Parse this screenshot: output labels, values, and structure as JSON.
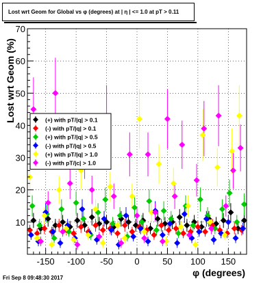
{
  "title": "Lost wrt Geom for Global vs φ (degrees) at | η | <= 1.0 at pT > 0.11",
  "footer": "Fri Sep  8 09:48:30 2017",
  "chart_data": {
    "type": "scatter",
    "xlabel": "φ (degrees)",
    "ylabel": "Lost wrt Geom (%)",
    "xlim": [
      -180,
      180
    ],
    "ylim": [
      0,
      70
    ],
    "xticks": [
      -150,
      -100,
      -50,
      0,
      50,
      100,
      150
    ],
    "yticks": [
      10,
      20,
      30,
      40,
      50,
      60,
      70
    ],
    "grid": true,
    "legend_position": "left-center",
    "series": [
      {
        "name": "(+) with pT/|q| > 0.1",
        "color": "#000000",
        "marker": "diamond",
        "points": [
          [
            -170,
            10.5
          ],
          [
            -158,
            8.0
          ],
          [
            -146,
            11.0
          ],
          [
            -134,
            9.0
          ],
          [
            -122,
            10.0
          ],
          [
            -110,
            8.5
          ],
          [
            -98,
            10.5
          ],
          [
            -86,
            9.0
          ],
          [
            -74,
            11.5
          ],
          [
            -62,
            9.5
          ],
          [
            -50,
            10.0
          ],
          [
            -38,
            8.5
          ],
          [
            -26,
            11.0
          ],
          [
            -14,
            10.0
          ],
          [
            -2,
            9.0
          ],
          [
            10,
            10.5
          ],
          [
            22,
            8.0
          ],
          [
            34,
            11.0
          ],
          [
            46,
            9.5
          ],
          [
            58,
            10.0
          ],
          [
            70,
            11.5
          ],
          [
            82,
            9.0
          ],
          [
            94,
            10.0
          ],
          [
            106,
            8.5
          ],
          [
            118,
            11.0
          ],
          [
            130,
            9.5
          ],
          [
            142,
            10.5
          ],
          [
            154,
            13.0
          ],
          [
            166,
            8.0
          ],
          [
            176,
            10.5
          ]
        ]
      },
      {
        "name": "(-) with pT/|q| > 0.1",
        "color": "#ff0000",
        "marker": "diamond",
        "points": [
          [
            -176,
            7.5
          ],
          [
            -164,
            6.5
          ],
          [
            -152,
            8.0
          ],
          [
            -140,
            7.0
          ],
          [
            -128,
            9.0
          ],
          [
            -116,
            7.5
          ],
          [
            -104,
            6.5
          ],
          [
            -92,
            8.5
          ],
          [
            -80,
            7.0
          ],
          [
            -68,
            9.0
          ],
          [
            -56,
            7.5
          ],
          [
            -44,
            8.0
          ],
          [
            -32,
            6.5
          ],
          [
            -20,
            9.0
          ],
          [
            -8,
            7.0
          ],
          [
            4,
            8.5
          ],
          [
            16,
            7.5
          ],
          [
            28,
            6.0
          ],
          [
            40,
            9.0
          ],
          [
            52,
            7.5
          ],
          [
            64,
            8.0
          ],
          [
            76,
            6.5
          ],
          [
            88,
            7.0
          ],
          [
            100,
            8.5
          ],
          [
            112,
            7.0
          ],
          [
            124,
            9.0
          ],
          [
            136,
            7.5
          ],
          [
            148,
            6.5
          ],
          [
            160,
            8.0
          ],
          [
            172,
            7.5
          ]
        ]
      },
      {
        "name": "(+) with pT/|q| > 0.5",
        "color": "#00cc00",
        "marker": "diamond",
        "points": [
          [
            -172,
            15.0
          ],
          [
            -160,
            9.0
          ],
          [
            -148,
            12.5
          ],
          [
            -136,
            5.0
          ],
          [
            -124,
            14.0
          ],
          [
            -112,
            7.0
          ],
          [
            -100,
            16.0
          ],
          [
            -88,
            11.0
          ],
          [
            -76,
            6.0
          ],
          [
            -64,
            13.0
          ],
          [
            -52,
            17.0
          ],
          [
            -40,
            9.5
          ],
          [
            -28,
            12.0
          ],
          [
            -16,
            5.5
          ],
          [
            -4,
            14.5
          ],
          [
            8,
            10.0
          ],
          [
            20,
            16.5
          ],
          [
            32,
            7.5
          ],
          [
            44,
            13.5
          ],
          [
            56,
            11.0
          ],
          [
            68,
            6.5
          ],
          [
            80,
            15.0
          ],
          [
            92,
            9.0
          ],
          [
            104,
            17.0
          ],
          [
            116,
            12.0
          ],
          [
            128,
            8.0
          ],
          [
            140,
            14.0
          ],
          [
            152,
            19.0
          ],
          [
            164,
            10.0
          ],
          [
            176,
            15.5
          ]
        ]
      },
      {
        "name": "(-) with pT/|q| > 0.5",
        "color": "#0000ff",
        "marker": "diamond",
        "points": [
          [
            -174,
            6.0
          ],
          [
            -162,
            4.0
          ],
          [
            -150,
            13.0
          ],
          [
            -138,
            7.0
          ],
          [
            -126,
            3.5
          ],
          [
            -114,
            9.0
          ],
          [
            -102,
            5.0
          ],
          [
            -90,
            14.0
          ],
          [
            -78,
            6.5
          ],
          [
            -66,
            4.5
          ],
          [
            -54,
            11.0
          ],
          [
            -42,
            7.5
          ],
          [
            -30,
            3.0
          ],
          [
            -18,
            12.0
          ],
          [
            -6,
            5.5
          ],
          [
            6,
            8.0
          ],
          [
            18,
            4.0
          ],
          [
            30,
            13.5
          ],
          [
            42,
            6.0
          ],
          [
            54,
            9.5
          ],
          [
            66,
            3.5
          ],
          [
            78,
            12.5
          ],
          [
            90,
            5.0
          ],
          [
            102,
            7.0
          ],
          [
            114,
            11.0
          ],
          [
            126,
            4.5
          ],
          [
            138,
            6.5
          ],
          [
            150,
            10.0
          ],
          [
            162,
            5.0
          ],
          [
            174,
            8.0
          ]
        ]
      },
      {
        "name": "(+) with pT/|q| > 1.0",
        "color": "#ffff00",
        "marker": "diamond",
        "points": [
          [
            -176,
            24.0
          ],
          [
            -164,
            5.0
          ],
          [
            -152,
            12.0
          ],
          [
            -140,
            3.0
          ],
          [
            -128,
            20.0
          ],
          [
            -116,
            8.0
          ],
          [
            -104,
            4.5
          ],
          [
            -92,
            26.0
          ],
          [
            -80,
            6.0
          ],
          [
            -68,
            14.0
          ],
          [
            -56,
            3.5
          ],
          [
            -44,
            21.0
          ],
          [
            -32,
            9.0
          ],
          [
            -20,
            5.0
          ],
          [
            -8,
            18.0
          ],
          [
            4,
            42.0
          ],
          [
            12,
            7.0
          ],
          [
            24,
            13.0
          ],
          [
            36,
            28.0
          ],
          [
            48,
            4.0
          ],
          [
            60,
            22.0
          ],
          [
            72,
            8.5
          ],
          [
            84,
            15.0
          ],
          [
            96,
            3.0
          ],
          [
            108,
            37.0
          ],
          [
            120,
            10.0
          ],
          [
            132,
            27.0
          ],
          [
            144,
            6.0
          ],
          [
            156,
            32.0
          ],
          [
            168,
            43.0
          ]
        ]
      },
      {
        "name": "(-) with pT/|c| > 1.0",
        "color": "#ff00ff",
        "marker": "diamond",
        "points": [
          [
            -170,
            45.0
          ],
          [
            -158,
            4.0
          ],
          [
            -146,
            16.0
          ],
          [
            -134,
            50.0
          ],
          [
            -122,
            7.0
          ],
          [
            -110,
            22.0
          ],
          [
            -98,
            3.0
          ],
          [
            -86,
            30.0
          ],
          [
            -74,
            20.0
          ],
          [
            -62,
            5.5
          ],
          [
            -50,
            43.0
          ],
          [
            -38,
            18.0
          ],
          [
            -26,
            3.5
          ],
          [
            -12,
            31.0
          ],
          [
            0,
            12.0
          ],
          [
            12,
            5.0
          ],
          [
            18,
            31.0
          ],
          [
            30,
            13.0
          ],
          [
            42,
            4.0
          ],
          [
            50,
            42.0
          ],
          [
            62,
            18.0
          ],
          [
            74,
            34.0
          ],
          [
            86,
            6.0
          ],
          [
            98,
            23.0
          ],
          [
            110,
            39.0
          ],
          [
            122,
            8.0
          ],
          [
            134,
            43.0
          ],
          [
            146,
            15.0
          ],
          [
            158,
            26.0
          ],
          [
            170,
            33.0
          ]
        ]
      }
    ]
  }
}
